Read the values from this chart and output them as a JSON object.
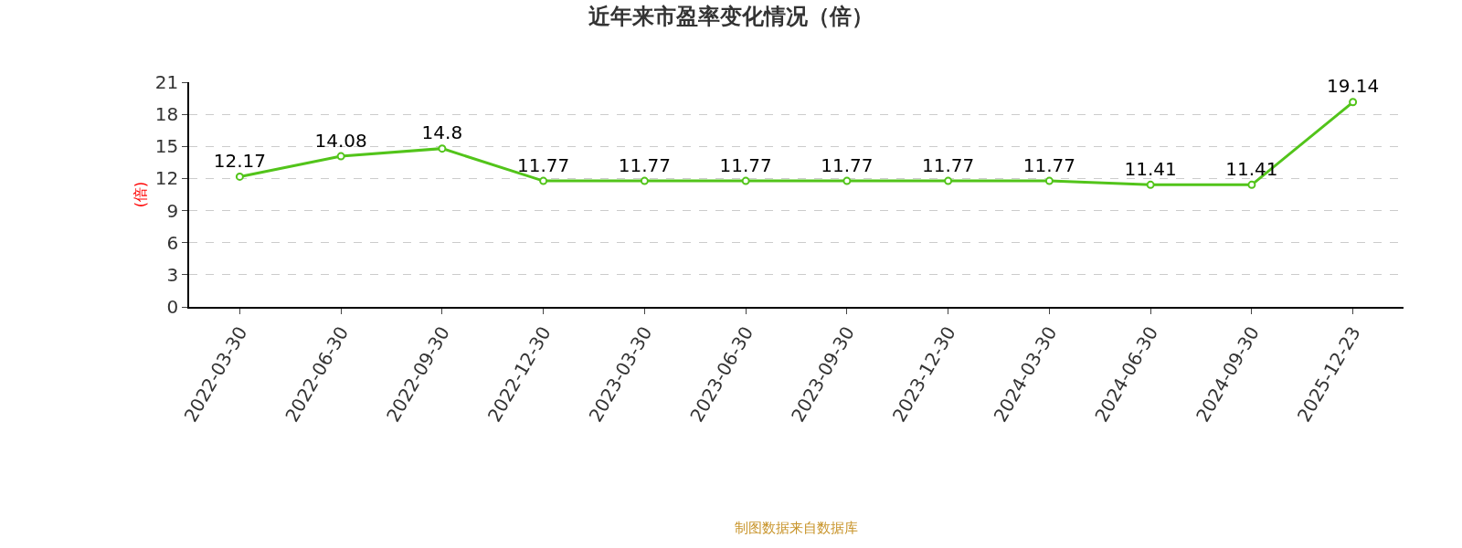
{
  "chart_data": {
    "type": "line",
    "title": "近年来市盈率变化情况（倍）",
    "ylabel": "(倍)",
    "categories": [
      "2022-03-30",
      "2022-06-30",
      "2022-09-30",
      "2022-12-30",
      "2023-03-30",
      "2023-06-30",
      "2023-09-30",
      "2023-12-30",
      "2024-03-30",
      "2024-06-30",
      "2024-09-30",
      "2025-12-23"
    ],
    "series": [
      {
        "color": "#52c41a",
        "values": [
          12.17,
          14.08,
          14.8,
          11.77,
          11.77,
          11.77,
          11.77,
          11.77,
          11.77,
          11.41,
          11.41,
          19.14
        ]
      }
    ],
    "ylim": [
      0,
      21
    ],
    "yticks": [
      0,
      3,
      6,
      9,
      12,
      15,
      18,
      21
    ],
    "grid": "y",
    "marker": "circle",
    "line_style": "solid",
    "data_labels": true,
    "annotations": [
      "制图数据来自数据库"
    ]
  }
}
